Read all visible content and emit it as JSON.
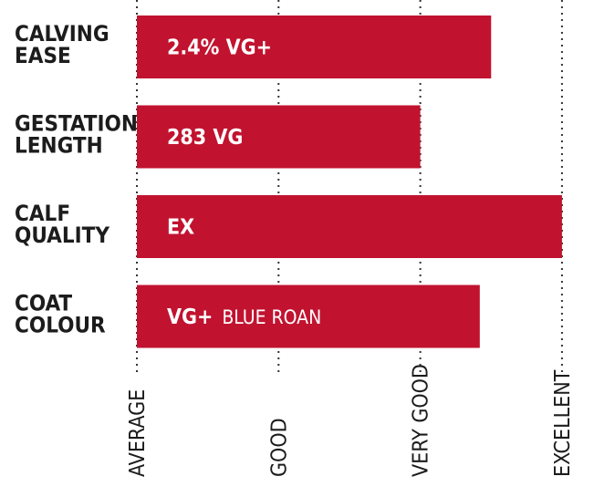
{
  "chart_data": {
    "type": "bar",
    "orientation": "horizontal",
    "x_scale": [
      "AVERAGE",
      "GOOD",
      "VERY GOOD",
      "EXCELLENT"
    ],
    "xlim": [
      0,
      3
    ],
    "grid": "dotted vertical",
    "bar_color": "#c1132f",
    "categories": [
      {
        "label_lines": [
          "CALVING",
          "EASE"
        ],
        "value": 2.5,
        "label_main": "2.4% VG+",
        "label_sub": ""
      },
      {
        "label_lines": [
          "GESTATION",
          "LENGTH"
        ],
        "value": 2.0,
        "label_main": "283 VG",
        "label_sub": ""
      },
      {
        "label_lines": [
          "CALF",
          "QUALITY"
        ],
        "value": 3.0,
        "label_main": "EX",
        "label_sub": ""
      },
      {
        "label_lines": [
          "COAT",
          "COLOUR"
        ],
        "value": 2.42,
        "label_main": "VG+",
        "label_sub": "BLUE ROAN"
      }
    ]
  }
}
